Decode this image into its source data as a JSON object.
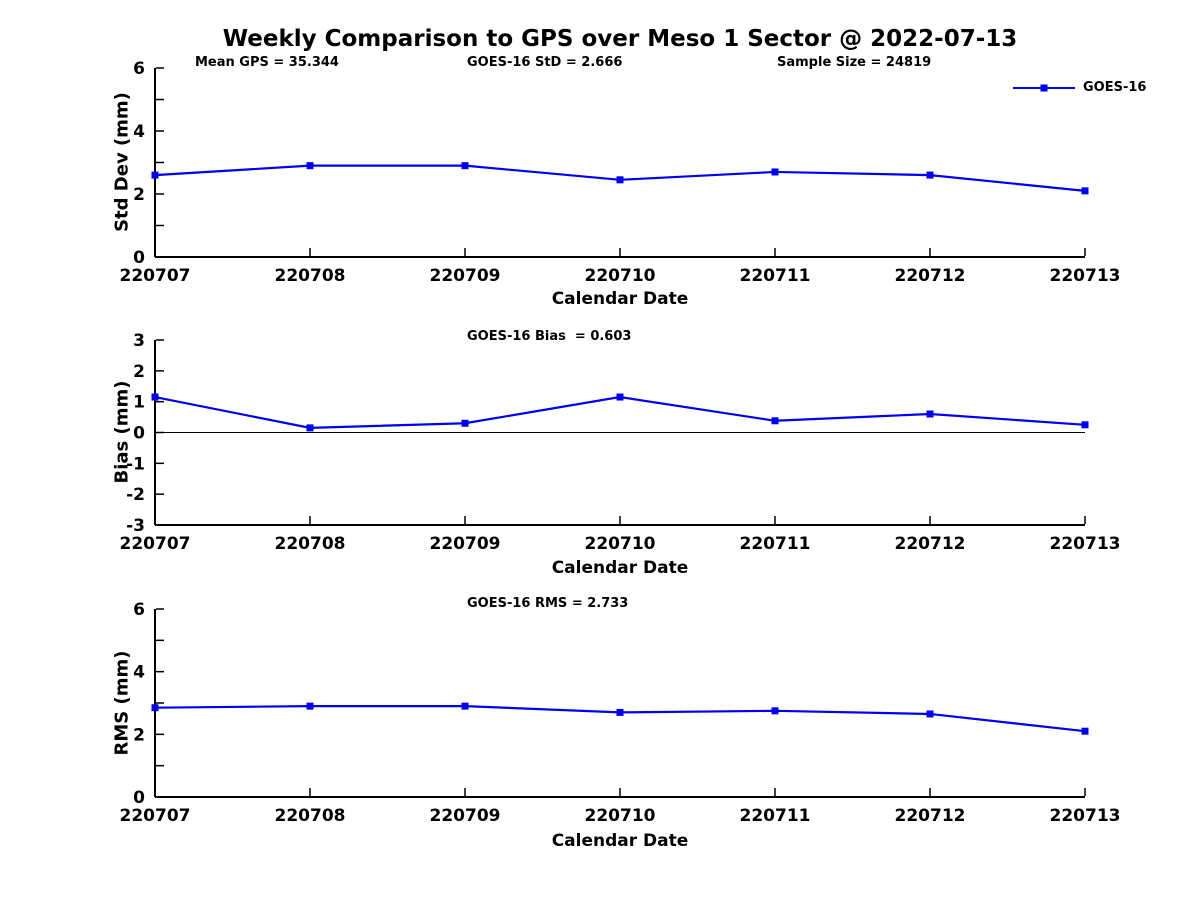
{
  "page": {
    "title": "Weekly Comparison to GPS over Meso 1 Sector @ 2022-07-13"
  },
  "colors": {
    "series": "#0000ee",
    "axis": "#000000",
    "zero_line": "#000000"
  },
  "legend": {
    "label": "GOES-16"
  },
  "subplot1": {
    "annotations": {
      "mean_gps": "Mean GPS = 35.344",
      "std": "GOES-16 StD = 2.666",
      "sample_size": "Sample Size = 24819"
    },
    "ylabel": "Std Dev (mm)",
    "xlabel": "Calendar Date"
  },
  "subplot2": {
    "title": "GOES-16 Bias  = 0.603",
    "ylabel": "Bias (mm)",
    "xlabel": "Calendar Date"
  },
  "subplot3": {
    "title": "GOES-16 RMS = 2.733",
    "ylabel": "RMS (mm)",
    "xlabel": "Calendar Date"
  },
  "chart_data": [
    {
      "type": "line",
      "title": "",
      "xlabel": "Calendar Date",
      "ylabel": "Std Dev (mm)",
      "categories": [
        "220707",
        "220708",
        "220709",
        "220710",
        "220711",
        "220712",
        "220713"
      ],
      "series": [
        {
          "name": "GOES-16",
          "values": [
            2.6,
            2.9,
            2.9,
            2.45,
            2.7,
            2.6,
            2.1
          ]
        }
      ],
      "ylim": [
        0,
        6
      ],
      "ytick_step": 1,
      "yticks_labeled": [
        0,
        2,
        4,
        6
      ],
      "zero_line": false,
      "grid": false,
      "legend_position": "top-right",
      "annotations": [
        "Mean GPS = 35.344",
        "GOES-16 StD = 2.666",
        "Sample Size = 24819"
      ]
    },
    {
      "type": "line",
      "title": "GOES-16 Bias  = 0.603",
      "xlabel": "Calendar Date",
      "ylabel": "Bias (mm)",
      "categories": [
        "220707",
        "220708",
        "220709",
        "220710",
        "220711",
        "220712",
        "220713"
      ],
      "series": [
        {
          "name": "GOES-16",
          "values": [
            1.15,
            0.15,
            0.3,
            1.15,
            0.38,
            0.6,
            0.25
          ]
        }
      ],
      "ylim": [
        -3,
        3
      ],
      "ytick_step": 1,
      "yticks_labeled": [
        -3,
        -2,
        -1,
        0,
        1,
        2,
        3
      ],
      "zero_line": true,
      "grid": false,
      "legend_position": "none"
    },
    {
      "type": "line",
      "title": "GOES-16 RMS = 2.733",
      "xlabel": "Calendar Date",
      "ylabel": "RMS (mm)",
      "categories": [
        "220707",
        "220708",
        "220709",
        "220710",
        "220711",
        "220712",
        "220713"
      ],
      "series": [
        {
          "name": "GOES-16",
          "values": [
            2.85,
            2.9,
            2.9,
            2.7,
            2.75,
            2.65,
            2.1
          ]
        }
      ],
      "ylim": [
        0,
        6
      ],
      "ytick_step": 1,
      "yticks_labeled": [
        0,
        2,
        4,
        6
      ],
      "zero_line": false,
      "grid": false,
      "legend_position": "none"
    }
  ]
}
